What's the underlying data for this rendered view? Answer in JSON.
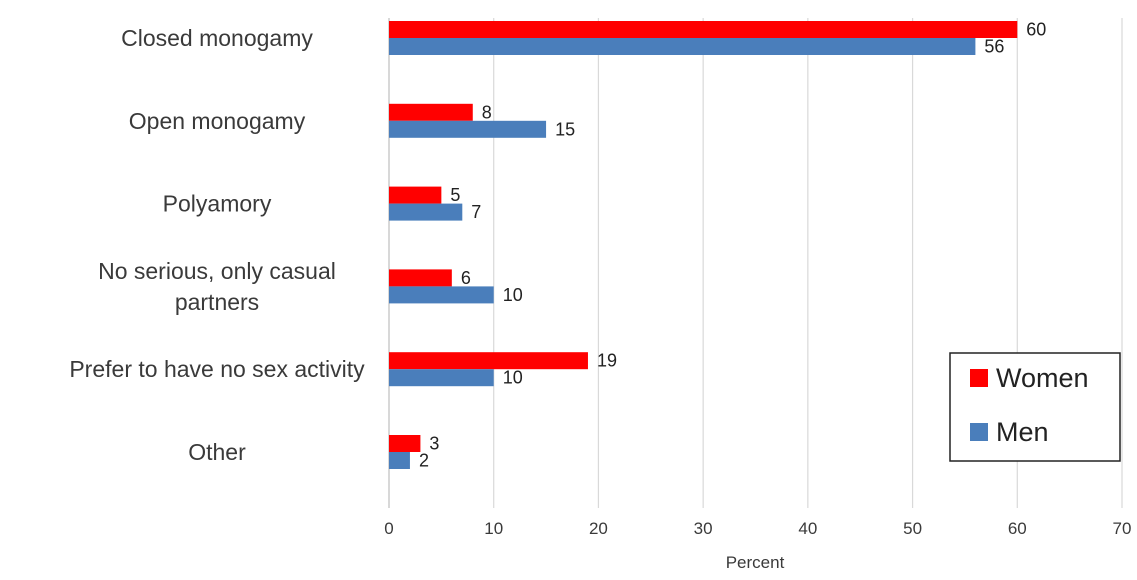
{
  "chart_data": {
    "type": "bar",
    "orientation": "horizontal",
    "categories": [
      "Closed monogamy",
      "Open monogamy",
      "Polyamory",
      "No serious, only casual partners",
      "Prefer to have no sex activity",
      "Other"
    ],
    "category_lines": [
      [
        "Closed monogamy"
      ],
      [
        "Open monogamy"
      ],
      [
        "Polyamory"
      ],
      [
        "No serious, only casual",
        "partners"
      ],
      [
        "Prefer to have no sex activity"
      ],
      [
        "Other"
      ]
    ],
    "series": [
      {
        "name": "Women",
        "color": "#ff0000",
        "values": [
          60,
          8,
          5,
          6,
          19,
          3
        ]
      },
      {
        "name": "Men",
        "color": "#4a7ebb",
        "values": [
          56,
          15,
          7,
          10,
          10,
          2
        ]
      }
    ],
    "xlabel": "Percent",
    "ylabel": "",
    "xlim": [
      0,
      70
    ],
    "xticks": [
      "0",
      "10",
      "20",
      "30",
      "40",
      "50",
      "60",
      "70"
    ],
    "grid": true,
    "legend": {
      "position": "bottom-right",
      "entries": [
        "Women",
        "Men"
      ]
    }
  }
}
